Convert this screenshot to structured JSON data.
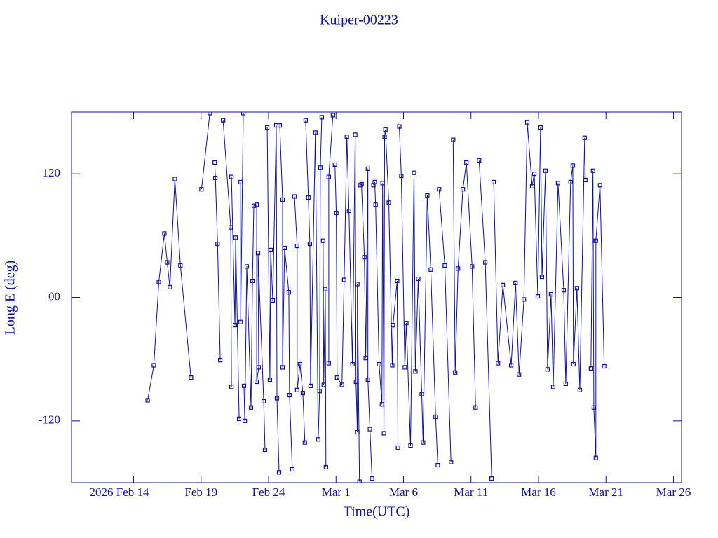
{
  "chart_data": {
    "type": "line",
    "title": "Kuiper-00223",
    "x_label": "Time(UTC)",
    "y_label": "Long E (deg)",
    "xlim": [
      40.4,
      85.6
    ],
    "ylim": [
      -180,
      180
    ],
    "xticks": [
      {
        "value": 45,
        "label": "2026 Feb 14"
      },
      {
        "value": 50,
        "label": "Feb 19"
      },
      {
        "value": 55,
        "label": "Feb 24"
      },
      {
        "value": 60,
        "label": "Mar  1"
      },
      {
        "value": 65,
        "label": "Mar  6"
      },
      {
        "value": 70,
        "label": "Mar 11"
      },
      {
        "value": 75,
        "label": "Mar 16"
      },
      {
        "value": 80,
        "label": "Mar 21"
      },
      {
        "value": 85,
        "label": "Mar 26"
      }
    ],
    "yticks": [
      -120,
      {
        "value": 0,
        "label": "00"
      },
      120
    ],
    "color": "#1010a0",
    "x": [
      46.04,
      46.5,
      46.87,
      47.28,
      47.49,
      47.69,
      48.06,
      48.47,
      49.25,
      null,
      50.03,
      50.65,
      null,
      51.01,
      51.06,
      51.22,
      51.42,
      null,
      51.63,
      52.2,
      52.25,
      null,
      52.25,
      52.51,
      52.56,
      52.82,
      null,
      52.93,
      52.93,
      53.13,
      null,
      53.18,
      53.24,
      53.39,
      53.7,
      53.81,
      53.91,
      54.12,
      54.12,
      54.27,
      54.22,
      54.64,
      54.74,
      null,
      54.9,
      55.1,
      55.16,
      55.31,
      55.57,
      55.62,
      55.78,
      null,
      55.83,
      56.04,
      56.04,
      56.19,
      56.5,
      56.55,
      56.76,
      null,
      56.92,
      57.12,
      57.12,
      57.33,
      57.54,
      57.69,
      null,
      57.75,
      57.95,
      58.06,
      58.11,
      58.47,
      58.68,
      58.78,
      58.84,
      58.94,
      null,
      59.04,
      59.09,
      59.2,
      59.25,
      null,
      59.46,
      59.46,
      59.77,
      null,
      59.92,
      60.02,
      60.08,
      60.44,
      60.6,
      60.8,
      60.96,
      61.22,
      61.42,
      61.48,
      61.58,
      61.58,
      61.74,
      null,
      61.79,
      61.89,
      62.1,
      62.2,
      62.36,
      62.36,
      62.51,
      62.67,
      null,
      62.77,
      62.87,
      62.93,
      63.19,
      63.4,
      63.45,
      63.55,
      63.6,
      63.66,
      63.91,
      64.17,
      64.22,
      64.53,
      64.59,
      null,
      64.69,
      64.84,
      65.1,
      65.21,
      65.52,
      65.78,
      65.88,
      66.09,
      66.35,
      66.45,
      66.76,
      67.02,
      67.38,
      67.54,
      null,
      67.64,
      68.06,
      68.52,
      null,
      68.68,
      68.83,
      69.04,
      69.4,
      69.66,
      70.08,
      70.34,
      null,
      70.6,
      71.06,
      71.53,
      null,
      71.68,
      72.0,
      72.36,
      72.98,
      73.3,
      73.56,
      73.92,
      74.17,
      74.53,
      74.69,
      74.95,
      75.15,
      75.26,
      75.52,
      75.67,
      75.93,
      76.09,
      76.45,
      76.87,
      77.02,
      77.38,
      77.54,
      77.59,
      77.85,
      78.06,
      78.42,
      78.47,
      null,
      78.89,
      79.04,
      79.1,
      79.25,
      79.25,
      79.56,
      79.87
    ],
    "values": [
      -100,
      -66,
      15,
      62,
      34,
      10,
      115,
      31,
      -78,
      null,
      105,
      179,
      null,
      131,
      116,
      52,
      -61,
      null,
      172,
      68,
      -87,
      null,
      117,
      -27,
      58,
      -118,
      null,
      112,
      -24,
      179,
      null,
      -86,
      -120,
      30,
      -107,
      16,
      89,
      90,
      -82,
      -68,
      43,
      -101,
      -148,
      null,
      165,
      -80,
      46,
      -3,
      167,
      -98,
      -170,
      null,
      167,
      95,
      -68,
      48,
      5,
      -95,
      -167,
      null,
      98,
      50,
      -90,
      -65,
      -93,
      -141,
      null,
      172,
      97,
      52,
      -86,
      160,
      -138,
      -91,
      126,
      175,
      null,
      55,
      -85,
      8,
      -165,
      null,
      -64,
      117,
      177,
      null,
      129,
      82,
      -78,
      -85,
      17,
      156,
      84,
      -65,
      158,
      -82,
      -131,
      13,
      -179,
      null,
      109,
      110,
      39,
      -59,
      125,
      -80,
      -128,
      -176,
      null,
      109,
      112,
      90,
      -65,
      -104,
      111,
      -132,
      156,
      163,
      92,
      -66,
      -27,
      16,
      -146,
      null,
      166,
      118,
      -68,
      -25,
      -144,
      121,
      -72,
      18,
      -94,
      -141,
      99,
      27,
      -116,
      -163,
      null,
      105,
      31,
      -160,
      null,
      153,
      -73,
      28,
      105,
      131,
      30,
      -107,
      null,
      133,
      34,
      -176,
      null,
      112,
      -64,
      12,
      -66,
      14,
      -75,
      -2,
      170,
      108,
      120,
      1,
      165,
      20,
      123,
      -70,
      3,
      -87,
      111,
      7,
      -84,
      112,
      128,
      -65,
      9,
      -90,
      155,
      114,
      null,
      -69,
      123,
      -107,
      -156,
      55,
      109,
      -67
    ]
  }
}
